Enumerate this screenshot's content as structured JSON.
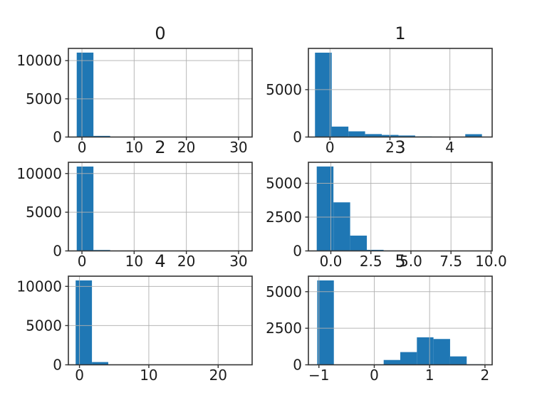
{
  "figure": {
    "kind": "matplotlib-histogram-grid",
    "rows": 3,
    "cols": 2,
    "background": "#ffffff",
    "bar_color": "#1f77b4",
    "grid_color": "#b0b0b0",
    "spine_color": "#333333",
    "text_color": "#1c1c1c"
  },
  "chart_data": [
    {
      "type": "bar",
      "subtype": "histogram",
      "title": "0",
      "row": 0,
      "col": 0,
      "bin_start": -1.0,
      "bin_width": 3.2,
      "values": [
        11050,
        150,
        30,
        12,
        6,
        4,
        2,
        1,
        1,
        1
      ],
      "xlim": [
        -2.6,
        32.6
      ],
      "ylim": [
        0,
        11600
      ],
      "xticks": [
        0,
        10,
        20,
        30
      ],
      "xtick_labels": [
        "0",
        "10",
        "20",
        "30"
      ],
      "yticks": [
        0,
        5000,
        10000
      ],
      "ytick_labels": [
        "0",
        "5000",
        "10000"
      ],
      "grid": true,
      "legend": "none"
    },
    {
      "type": "bar",
      "subtype": "histogram",
      "title": "1",
      "row": 0,
      "col": 1,
      "bin_start": -0.5,
      "bin_width": 0.557,
      "values": [
        8900,
        1100,
        600,
        310,
        220,
        160,
        60,
        40,
        30,
        300
      ],
      "xlim": [
        -0.72,
        5.41
      ],
      "ylim": [
        0,
        9350
      ],
      "xticks": [
        0,
        2,
        4
      ],
      "xtick_labels": [
        "0",
        "2",
        "4"
      ],
      "yticks": [
        0,
        5000
      ],
      "ytick_labels": [
        "0",
        "5000"
      ],
      "grid": true,
      "legend": "none"
    },
    {
      "type": "bar",
      "subtype": "histogram",
      "title": "2",
      "row": 1,
      "col": 0,
      "bin_start": -1.0,
      "bin_width": 3.2,
      "values": [
        10900,
        120,
        25,
        10,
        5,
        3,
        2,
        1,
        1,
        1
      ],
      "xlim": [
        -2.6,
        32.6
      ],
      "ylim": [
        0,
        11450
      ],
      "xticks": [
        0,
        10,
        20,
        30
      ],
      "xtick_labels": [
        "0",
        "10",
        "20",
        "30"
      ],
      "yticks": [
        0,
        5000,
        10000
      ],
      "ytick_labels": [
        "0",
        "5000",
        "10000"
      ],
      "grid": true,
      "legend": "none"
    },
    {
      "type": "bar",
      "subtype": "histogram",
      "title": "3",
      "row": 1,
      "col": 1,
      "bin_start": -0.88,
      "bin_width": 1.043,
      "values": [
        6240,
        3590,
        1130,
        80,
        30,
        12,
        6,
        3,
        2,
        1
      ],
      "xlim": [
        -1.4,
        10.07
      ],
      "ylim": [
        0,
        6550
      ],
      "xticks": [
        0,
        2.5,
        5,
        7.5,
        10
      ],
      "xtick_labels": [
        "0.0",
        "2.5",
        "5.0",
        "7.5",
        "10.0"
      ],
      "yticks": [
        0,
        2500,
        5000
      ],
      "ytick_labels": [
        "0",
        "2500",
        "5000"
      ],
      "grid": true,
      "legend": "none"
    },
    {
      "type": "bar",
      "subtype": "histogram",
      "title": "4",
      "row": 2,
      "col": 0,
      "bin_start": -0.55,
      "bin_width": 2.35,
      "values": [
        10760,
        350,
        20,
        8,
        4,
        2,
        1,
        1,
        1,
        1
      ],
      "xlim": [
        -1.6,
        24.9
      ],
      "ylim": [
        0,
        11300
      ],
      "xticks": [
        0,
        10,
        20
      ],
      "xtick_labels": [
        "0",
        "10",
        "20"
      ],
      "yticks": [
        0,
        5000,
        10000
      ],
      "ytick_labels": [
        "0",
        "5000",
        "10000"
      ],
      "grid": true,
      "legend": "none"
    },
    {
      "type": "bar",
      "subtype": "histogram",
      "title": "5",
      "row": 2,
      "col": 1,
      "bin_start": -1.03,
      "bin_width": 0.3,
      "values": [
        5770,
        0,
        0,
        0,
        330,
        870,
        1880,
        1765,
        575,
        35
      ],
      "xlim": [
        -1.19,
        2.13
      ],
      "ylim": [
        0,
        6060
      ],
      "xticks": [
        -1,
        0,
        1,
        2
      ],
      "xtick_labels": [
        "−1",
        "0",
        "1",
        "2"
      ],
      "yticks": [
        0,
        2500,
        5000
      ],
      "ytick_labels": [
        "0",
        "2500",
        "5000"
      ],
      "grid": true,
      "legend": "none"
    }
  ]
}
